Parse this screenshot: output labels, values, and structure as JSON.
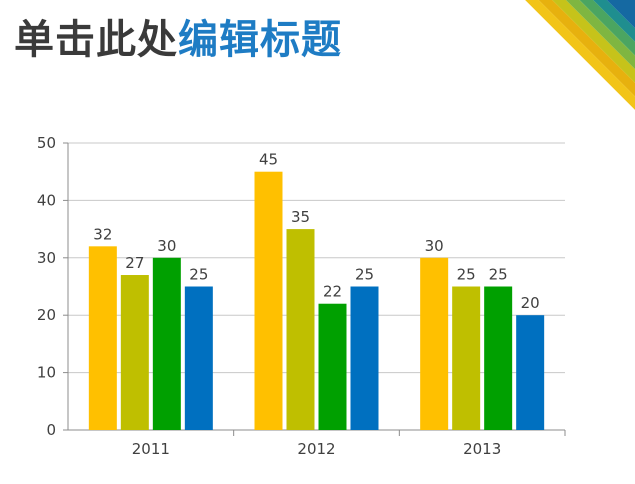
{
  "slide": {
    "title_dark": "单击此处",
    "title_blue": "编辑标题"
  },
  "decoration": {
    "stripe_colors": [
      "#f2c418",
      "#e7b10e",
      "#c6c31a",
      "#7fb641",
      "#4ba561",
      "#1f8e8f",
      "#1569a2"
    ]
  },
  "chart_data": {
    "type": "bar",
    "title": "",
    "xlabel": "",
    "ylabel": "",
    "categories": [
      "2011",
      "2012",
      "2013"
    ],
    "series": [
      {
        "color": "#ffc000",
        "values": [
          32,
          45,
          30
        ]
      },
      {
        "color": "#bfbf00",
        "values": [
          27,
          35,
          25
        ]
      },
      {
        "color": "#00a000",
        "values": [
          30,
          22,
          25
        ]
      },
      {
        "color": "#0070c0",
        "values": [
          25,
          25,
          20
        ]
      }
    ],
    "ylim": [
      0,
      50
    ],
    "yticks": [
      "0",
      "10",
      "20",
      "30",
      "40",
      "50"
    ],
    "grid": true,
    "legend": "none",
    "data_labels": true
  }
}
